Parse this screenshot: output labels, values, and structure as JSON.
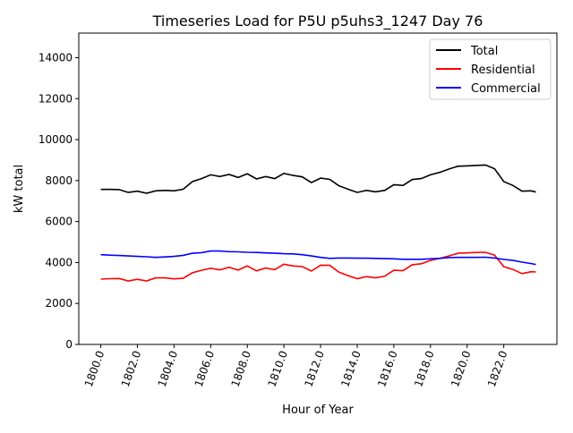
{
  "chart_data": {
    "type": "line",
    "title": "Timeseries Load for P5U p5uhs3_1247  Day 76",
    "xlabel": "Hour of Year",
    "ylabel": "kW total",
    "xlim": [
      1798.8,
      1824.9
    ],
    "ylim": [
      0,
      15200
    ],
    "xticks": [
      1800,
      1802,
      1804,
      1806,
      1808,
      1810,
      1812,
      1814,
      1816,
      1818,
      1820,
      1822
    ],
    "xtick_labels": [
      "1800.0",
      "1802.0",
      "1804.0",
      "1806.0",
      "1808.0",
      "1810.0",
      "1812.0",
      "1814.0",
      "1816.0",
      "1818.0",
      "1820.0",
      "1822.0"
    ],
    "yticks": [
      0,
      2000,
      4000,
      6000,
      8000,
      10000,
      12000,
      14000
    ],
    "ytick_labels": [
      "0",
      "2000",
      "4000",
      "6000",
      "8000",
      "10000",
      "12000",
      "14000"
    ],
    "grid": false,
    "legend_position": "top-right",
    "x": [
      1800,
      1800.5,
      1801,
      1801.5,
      1802,
      1802.5,
      1803,
      1803.5,
      1804,
      1804.5,
      1805,
      1805.5,
      1806,
      1806.5,
      1807,
      1807.5,
      1808,
      1808.5,
      1809,
      1809.5,
      1810,
      1810.5,
      1811,
      1811.5,
      1812,
      1812.5,
      1813,
      1813.5,
      1814,
      1814.5,
      1815,
      1815.5,
      1816,
      1816.5,
      1817,
      1817.5,
      1818,
      1818.5,
      1819,
      1819.5,
      1820,
      1820.5,
      1821,
      1821.5,
      1822,
      1822.5,
      1823,
      1823.5,
      1823.75
    ],
    "series": [
      {
        "name": "Total",
        "color": "#000000",
        "values": [
          7570,
          7570,
          7560,
          7420,
          7480,
          7380,
          7500,
          7520,
          7500,
          7580,
          7950,
          8100,
          8280,
          8200,
          8300,
          8150,
          8330,
          8080,
          8200,
          8100,
          8350,
          8250,
          8180,
          7900,
          8120,
          8060,
          7750,
          7580,
          7420,
          7520,
          7450,
          7520,
          7800,
          7760,
          8050,
          8100,
          8280,
          8400,
          8560,
          8700,
          8720,
          8740,
          8760,
          8580,
          7950,
          7760,
          7480,
          7500,
          7440
        ]
      },
      {
        "name": "Residential",
        "color": "#ff0000",
        "values": [
          3190,
          3210,
          3220,
          3100,
          3180,
          3100,
          3250,
          3250,
          3200,
          3230,
          3500,
          3620,
          3720,
          3640,
          3770,
          3630,
          3830,
          3590,
          3730,
          3650,
          3920,
          3830,
          3800,
          3580,
          3870,
          3860,
          3530,
          3360,
          3210,
          3310,
          3250,
          3330,
          3620,
          3600,
          3890,
          3940,
          4100,
          4200,
          4320,
          4450,
          4470,
          4490,
          4500,
          4360,
          3800,
          3660,
          3460,
          3550,
          3540
        ]
      },
      {
        "name": "Commercial",
        "color": "#0000ff",
        "values": [
          4380,
          4360,
          4340,
          4320,
          4300,
          4280,
          4250,
          4270,
          4300,
          4350,
          4450,
          4480,
          4560,
          4560,
          4530,
          4520,
          4500,
          4490,
          4470,
          4450,
          4430,
          4420,
          4380,
          4320,
          4250,
          4200,
          4220,
          4220,
          4210,
          4210,
          4200,
          4190,
          4180,
          4160,
          4160,
          4160,
          4180,
          4200,
          4240,
          4250,
          4250,
          4250,
          4260,
          4220,
          4150,
          4100,
          4020,
          3950,
          3900
        ]
      }
    ]
  }
}
